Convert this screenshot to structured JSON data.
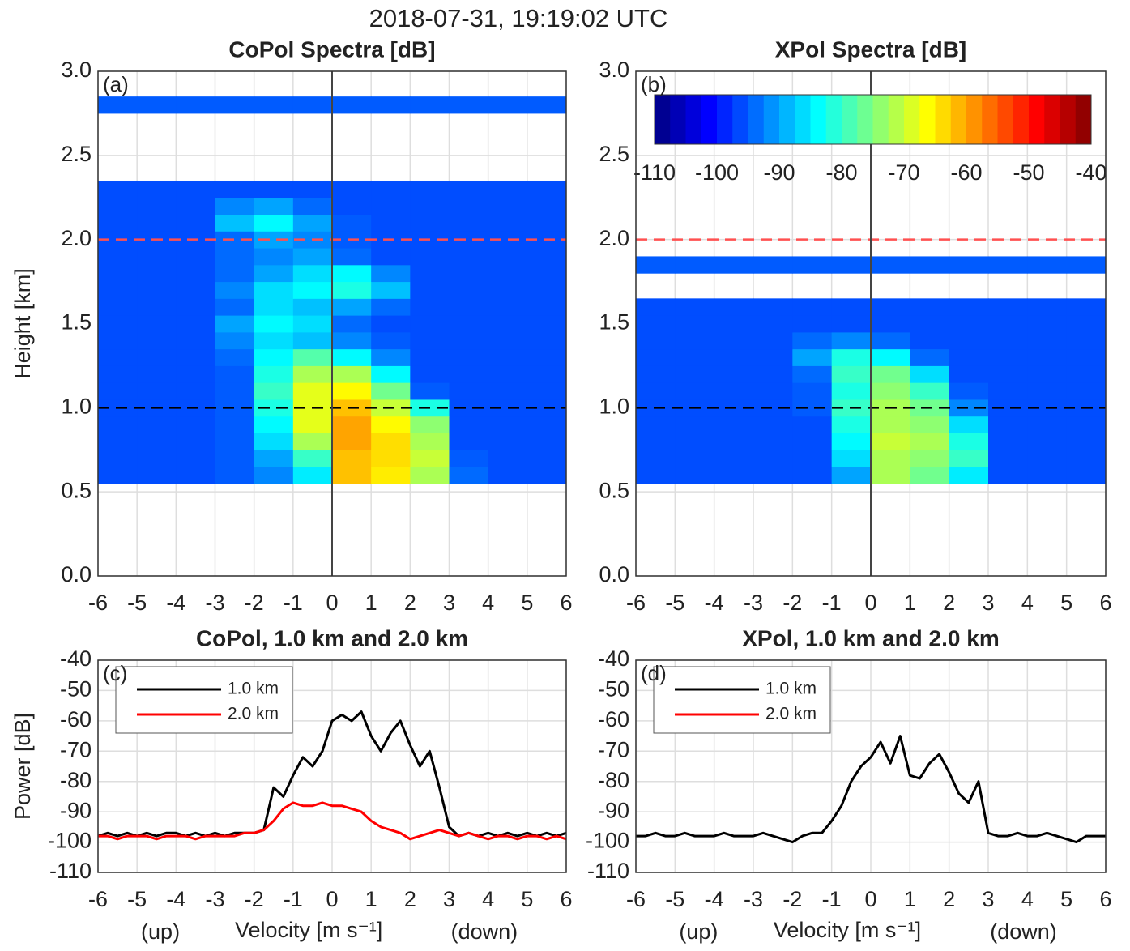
{
  "title": "2018-07-31, 19:19:02 UTC",
  "chart_data": [
    {
      "type": "heatmap",
      "title": "CoPol Spectra [dB]",
      "panel_label": "(a)",
      "ylabel": "Height [km]",
      "colormap": "jet",
      "clim": [
        -110,
        -40
      ],
      "x": [
        -5.5,
        -4.5,
        -3.5,
        -2.5,
        -1.5,
        -0.5,
        0.5,
        1.5,
        2.5,
        3.5,
        4.5,
        5.5
      ],
      "y": [
        0.6,
        0.7,
        0.8,
        0.9,
        1.0,
        1.1,
        1.2,
        1.3,
        1.4,
        1.5,
        1.6,
        1.7,
        1.8,
        1.9,
        2.0,
        2.1,
        2.2,
        2.3,
        2.8
      ],
      "z": [
        [
          -96,
          -96,
          -96,
          -95,
          -92,
          -85,
          -62,
          -65,
          -72,
          -94,
          -96,
          -96
        ],
        [
          -96,
          -96,
          -96,
          -95,
          -90,
          -80,
          -62,
          -64,
          -70,
          -95,
          -96,
          -96
        ],
        [
          -96,
          -96,
          -96,
          -95,
          -86,
          -72,
          -60,
          -64,
          -72,
          -96,
          -96,
          -96
        ],
        [
          -96,
          -96,
          -96,
          -95,
          -84,
          -68,
          -60,
          -66,
          -74,
          -96,
          -96,
          -96
        ],
        [
          -96,
          -96,
          -96,
          -95,
          -82,
          -68,
          -62,
          -70,
          -82,
          -96,
          -96,
          -96
        ],
        [
          -96,
          -96,
          -96,
          -95,
          -80,
          -68,
          -66,
          -76,
          -95,
          -96,
          -96,
          -96
        ],
        [
          -96,
          -96,
          -96,
          -95,
          -82,
          -72,
          -72,
          -84,
          -96,
          -96,
          -96,
          -96
        ],
        [
          -96,
          -96,
          -96,
          -94,
          -84,
          -78,
          -84,
          -92,
          -96,
          -96,
          -96,
          -96
        ],
        [
          -96,
          -96,
          -96,
          -92,
          -86,
          -88,
          -92,
          -95,
          -96,
          -96,
          -96,
          -96
        ],
        [
          -96,
          -96,
          -96,
          -90,
          -84,
          -86,
          -94,
          -96,
          -96,
          -96,
          -96,
          -96
        ],
        [
          -96,
          -96,
          -96,
          -94,
          -86,
          -88,
          -90,
          -94,
          -96,
          -96,
          -96,
          -96
        ],
        [
          -96,
          -96,
          -96,
          -92,
          -86,
          -84,
          -82,
          -88,
          -96,
          -96,
          -96,
          -96
        ],
        [
          -96,
          -96,
          -96,
          -94,
          -90,
          -86,
          -84,
          -92,
          -96,
          -96,
          -96,
          -96
        ],
        [
          -96,
          -96,
          -96,
          -94,
          -92,
          -90,
          -94,
          -96,
          -96,
          -96,
          -96,
          -96
        ],
        [
          -96,
          -96,
          -96,
          -94,
          -90,
          -92,
          -95,
          -96,
          -96,
          -96,
          -96,
          -96
        ],
        [
          -96,
          -96,
          -96,
          -88,
          -84,
          -90,
          -95,
          -96,
          -96,
          -96,
          -96,
          -96
        ],
        [
          -96,
          -96,
          -96,
          -92,
          -90,
          -94,
          -96,
          -96,
          -96,
          -96,
          -96,
          -96
        ],
        [
          -96,
          -96,
          -96,
          -96,
          -96,
          -96,
          -96,
          -96,
          -96,
          -96,
          -96,
          -96
        ],
        [
          -95,
          -95,
          -95,
          -95,
          -95,
          -95,
          -95,
          -95,
          -95,
          -95,
          -95,
          -95
        ]
      ],
      "hlines": [
        {
          "y": 1.0,
          "color": "#000000"
        },
        {
          "y": 2.0,
          "color": "#ff5050"
        }
      ],
      "vline": 0,
      "xlim": [
        -6,
        6
      ],
      "ylim": [
        0,
        3
      ],
      "xticks": [
        -6,
        -5,
        -4,
        -3,
        -2,
        -1,
        0,
        1,
        2,
        3,
        4,
        5,
        6
      ],
      "yticks": [
        {
          "value": 0,
          "label": "0.0"
        },
        {
          "value": 0.5,
          "label": "0.5"
        },
        {
          "value": 1,
          "label": "1.0"
        },
        {
          "value": 1.5,
          "label": "1.5"
        },
        {
          "value": 2,
          "label": "2.0"
        },
        {
          "value": 2.5,
          "label": "2.5"
        },
        {
          "value": 3,
          "label": "3.0"
        }
      ],
      "grid": true
    },
    {
      "type": "heatmap",
      "title": "XPol Spectra [dB]",
      "panel_label": "(b)",
      "colormap": "jet",
      "clim": [
        -110,
        -40
      ],
      "colorbar_ticks": [
        -110,
        -100,
        -90,
        -80,
        -70,
        -60,
        -50,
        -40
      ],
      "x": [
        -5.5,
        -4.5,
        -3.5,
        -2.5,
        -1.5,
        -0.5,
        0.5,
        1.5,
        2.5,
        3.5,
        4.5,
        5.5
      ],
      "y": [
        0.6,
        0.7,
        0.8,
        0.9,
        1.0,
        1.1,
        1.2,
        1.3,
        1.4,
        1.5,
        1.6,
        1.85
      ],
      "z": [
        [
          -96,
          -96,
          -96,
          -96,
          -96,
          -90,
          -72,
          -76,
          -85,
          -96,
          -96,
          -96
        ],
        [
          -96,
          -96,
          -96,
          -96,
          -96,
          -86,
          -72,
          -74,
          -80,
          -96,
          -96,
          -96
        ],
        [
          -96,
          -96,
          -96,
          -96,
          -96,
          -84,
          -70,
          -72,
          -82,
          -96,
          -96,
          -96
        ],
        [
          -96,
          -96,
          -96,
          -96,
          -96,
          -82,
          -72,
          -74,
          -86,
          -96,
          -96,
          -96
        ],
        [
          -96,
          -96,
          -96,
          -96,
          -95,
          -80,
          -72,
          -76,
          -92,
          -96,
          -96,
          -96
        ],
        [
          -96,
          -96,
          -96,
          -96,
          -95,
          -82,
          -74,
          -80,
          -95,
          -96,
          -96,
          -96
        ],
        [
          -96,
          -96,
          -96,
          -96,
          -94,
          -80,
          -76,
          -86,
          -96,
          -96,
          -96,
          -96
        ],
        [
          -96,
          -96,
          -96,
          -96,
          -90,
          -82,
          -84,
          -94,
          -96,
          -96,
          -96,
          -96
        ],
        [
          -96,
          -96,
          -96,
          -96,
          -94,
          -92,
          -94,
          -96,
          -96,
          -96,
          -96,
          -96
        ],
        [
          -96,
          -96,
          -96,
          -96,
          -96,
          -96,
          -96,
          -96,
          -96,
          -96,
          -96,
          -96
        ],
        [
          -96,
          -96,
          -96,
          -96,
          -96,
          -96,
          -96,
          -96,
          -96,
          -96,
          -96,
          -96
        ],
        [
          -95,
          -95,
          -95,
          -95,
          -95,
          -95,
          -95,
          -95,
          -95,
          -95,
          -95,
          -95
        ]
      ],
      "hlines": [
        {
          "y": 1.0,
          "color": "#000000"
        },
        {
          "y": 2.0,
          "color": "#ff5050"
        }
      ],
      "vline": 0,
      "xlim": [
        -6,
        6
      ],
      "ylim": [
        0,
        3
      ],
      "xticks": [
        -6,
        -5,
        -4,
        -3,
        -2,
        -1,
        0,
        1,
        2,
        3,
        4,
        5,
        6
      ],
      "yticks": [
        {
          "value": 0,
          "label": "0.0"
        },
        {
          "value": 0.5,
          "label": "0.5"
        },
        {
          "value": 1,
          "label": "1.0"
        },
        {
          "value": 1.5,
          "label": "1.5"
        },
        {
          "value": 2,
          "label": "2.0"
        },
        {
          "value": 2.5,
          "label": "2.5"
        },
        {
          "value": 3,
          "label": "3.0"
        }
      ],
      "grid": true
    },
    {
      "type": "line",
      "title": "CoPol, 1.0 km and 2.0 km",
      "panel_label": "(c)",
      "ylabel": "Power [dB]",
      "xlabel": "Velocity [m s⁻¹]",
      "annotations": [
        "(up)",
        "(down)"
      ],
      "legend": "upper left",
      "x": [
        -6,
        -5.75,
        -5.5,
        -5.25,
        -5,
        -4.75,
        -4.5,
        -4.25,
        -4,
        -3.75,
        -3.5,
        -3.25,
        -3,
        -2.75,
        -2.5,
        -2.25,
        -2,
        -1.75,
        -1.5,
        -1.25,
        -1,
        -0.75,
        -0.5,
        -0.25,
        0,
        0.25,
        0.5,
        0.75,
        1,
        1.25,
        1.5,
        1.75,
        2,
        2.25,
        2.5,
        2.75,
        3,
        3.25,
        3.5,
        3.75,
        4,
        4.25,
        4.5,
        4.75,
        5,
        5.25,
        5.5,
        5.75,
        6
      ],
      "series": [
        {
          "name": "1.0 km",
          "color": "#000000",
          "values": [
            -98,
            -97,
            -98,
            -97,
            -98,
            -97,
            -98,
            -97,
            -97,
            -98,
            -97,
            -98,
            -97,
            -98,
            -97,
            -97,
            -97,
            -96,
            -82,
            -85,
            -78,
            -72,
            -75,
            -70,
            -60,
            -58,
            -60,
            -57,
            -65,
            -70,
            -64,
            -60,
            -68,
            -75,
            -70,
            -82,
            -95,
            -98,
            -97,
            -98,
            -97,
            -98,
            -97,
            -98,
            -97,
            -98,
            -97,
            -98,
            -97
          ]
        },
        {
          "name": "2.0 km",
          "color": "#ff0000",
          "values": [
            -98,
            -98,
            -99,
            -98,
            -98,
            -98,
            -99,
            -98,
            -98,
            -98,
            -99,
            -98,
            -98,
            -98,
            -98,
            -97,
            -97,
            -96,
            -93,
            -89,
            -87,
            -88,
            -88,
            -87,
            -88,
            -88,
            -89,
            -90,
            -93,
            -95,
            -96,
            -97,
            -99,
            -98,
            -97,
            -96,
            -97,
            -98,
            -97,
            -98,
            -99,
            -98,
            -98,
            -99,
            -98,
            -98,
            -99,
            -98,
            -99
          ]
        }
      ],
      "xlim": [
        -6,
        6
      ],
      "ylim": [
        -110,
        -40
      ],
      "xticks": [
        -6,
        -5,
        -4,
        -3,
        -2,
        -1,
        0,
        1,
        2,
        3,
        4,
        5,
        6
      ],
      "yticks": [
        -110,
        -100,
        -90,
        -80,
        -70,
        -60,
        -50,
        -40
      ],
      "grid": true
    },
    {
      "type": "line",
      "title": "XPol, 1.0 km and 2.0 km",
      "panel_label": "(d)",
      "xlabel": "Velocity [m s⁻¹]",
      "annotations": [
        "(up)",
        "(down)"
      ],
      "legend": "upper left",
      "x": [
        -6,
        -5.75,
        -5.5,
        -5.25,
        -5,
        -4.75,
        -4.5,
        -4.25,
        -4,
        -3.75,
        -3.5,
        -3.25,
        -3,
        -2.75,
        -2.5,
        -2.25,
        -2,
        -1.75,
        -1.5,
        -1.25,
        -1,
        -0.75,
        -0.5,
        -0.25,
        0,
        0.25,
        0.5,
        0.75,
        1,
        1.25,
        1.5,
        1.75,
        2,
        2.25,
        2.5,
        2.75,
        3,
        3.25,
        3.5,
        3.75,
        4,
        4.25,
        4.5,
        4.75,
        5,
        5.25,
        5.5,
        5.75,
        6
      ],
      "series": [
        {
          "name": "1.0 km",
          "color": "#000000",
          "values": [
            -98,
            -98,
            -97,
            -98,
            -98,
            -97,
            -98,
            -98,
            -98,
            -97,
            -98,
            -98,
            -98,
            -97,
            -98,
            -99,
            -100,
            -98,
            -97,
            -97,
            -93,
            -88,
            -80,
            -75,
            -72,
            -67,
            -74,
            -65,
            -78,
            -79,
            -74,
            -71,
            -77,
            -84,
            -87,
            -80,
            -97,
            -98,
            -98,
            -97,
            -98,
            -98,
            -97,
            -98,
            -99,
            -100,
            -98,
            -98,
            -98
          ]
        },
        {
          "name": "2.0 km",
          "color": "#ff0000",
          "values": [
            null,
            null,
            null,
            null,
            null,
            null,
            null,
            null,
            null,
            null,
            null,
            null,
            null,
            null,
            null,
            null,
            null,
            null,
            null,
            null,
            null,
            null,
            null,
            null,
            null,
            null,
            null,
            null,
            null,
            null,
            null,
            null,
            null,
            null,
            null,
            null,
            null,
            null,
            null,
            null,
            null,
            null,
            null,
            null,
            null,
            null,
            null,
            null,
            null
          ]
        }
      ],
      "xlim": [
        -6,
        6
      ],
      "ylim": [
        -110,
        -40
      ],
      "xticks": [
        -6,
        -5,
        -4,
        -3,
        -2,
        -1,
        0,
        1,
        2,
        3,
        4,
        5,
        6
      ],
      "yticks": [
        -110,
        -100,
        -90,
        -80,
        -70,
        -60,
        -50,
        -40
      ],
      "grid": true
    }
  ]
}
